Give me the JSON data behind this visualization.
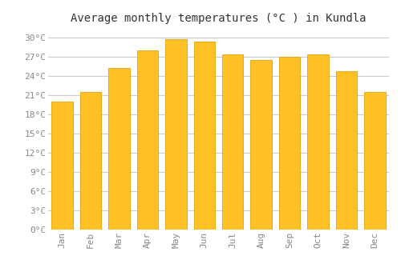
{
  "title": "Average monthly temperatures (°C ) in Kundla",
  "months": [
    "Jan",
    "Feb",
    "Mar",
    "Apr",
    "May",
    "Jun",
    "Jul",
    "Aug",
    "Sep",
    "Oct",
    "Nov",
    "Dec"
  ],
  "values": [
    20.0,
    21.5,
    25.3,
    28.0,
    29.7,
    29.4,
    27.4,
    26.5,
    27.0,
    27.4,
    24.7,
    21.5
  ],
  "bar_color": "#FFC125",
  "bar_edge_color": "#E8A000",
  "background_color": "#FFFFFF",
  "grid_color": "#CCCCCC",
  "ylim": [
    0,
    31.5
  ],
  "yticks": [
    0,
    3,
    6,
    9,
    12,
    15,
    18,
    21,
    24,
    27,
    30
  ],
  "ytick_labels": [
    "0°C",
    "3°C",
    "6°C",
    "9°C",
    "12°C",
    "15°C",
    "18°C",
    "21°C",
    "24°C",
    "27°C",
    "30°C"
  ],
  "title_fontsize": 10,
  "tick_fontsize": 8,
  "tick_color": "#888888"
}
